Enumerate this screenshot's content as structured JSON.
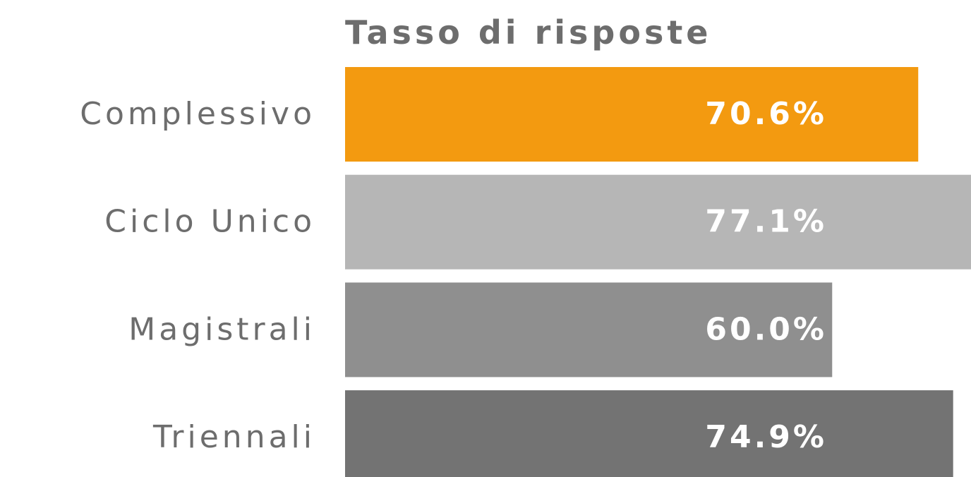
{
  "chart_data": {
    "type": "hbar",
    "title": "Tasso di risposte",
    "categories": [
      "Complessivo",
      "Ciclo Unico",
      "Magistrali",
      "Triennali"
    ],
    "values": [
      70.6,
      77.1,
      60.0,
      74.9
    ],
    "value_labels": [
      "70.6%",
      "77.1%",
      "60.0%",
      "74.9%"
    ],
    "colors": [
      "#f39a10",
      "#b6b6b6",
      "#8f8f8f",
      "#737373"
    ],
    "xlim": [
      0,
      77.1
    ]
  }
}
